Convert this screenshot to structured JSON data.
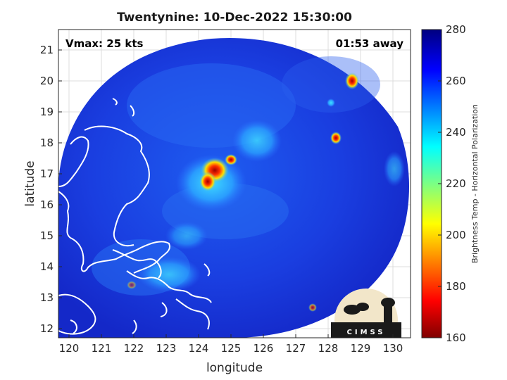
{
  "title": "Twentynine: 10-Dec-2022 15:30:00",
  "vmax_label": "Vmax: 25 kts",
  "time_away": "01:53 away",
  "xlabel": "longitude",
  "ylabel": "latitude",
  "x_ticks": [
    "120",
    "121",
    "122",
    "123",
    "124",
    "125",
    "126",
    "127",
    "128",
    "129",
    "130"
  ],
  "y_ticks": [
    "21",
    "20",
    "19",
    "18",
    "17",
    "16",
    "15",
    "14",
    "13",
    "12"
  ],
  "colorbar": {
    "label": "Brightness Temp - Horizontal Polarization",
    "ticks": [
      "280",
      "260",
      "240",
      "220",
      "200",
      "180",
      "160"
    ],
    "range": [
      160,
      280
    ],
    "colormap": "jet"
  },
  "logo": {
    "text": "CIMSS"
  },
  "colors": {
    "background_scene": "#1a2fd8",
    "coastline": "#ffffff",
    "axis": "#262626"
  },
  "map_extent": {
    "lon": [
      119.8,
      130.2
    ],
    "lat": [
      11.7,
      21.7
    ]
  }
}
